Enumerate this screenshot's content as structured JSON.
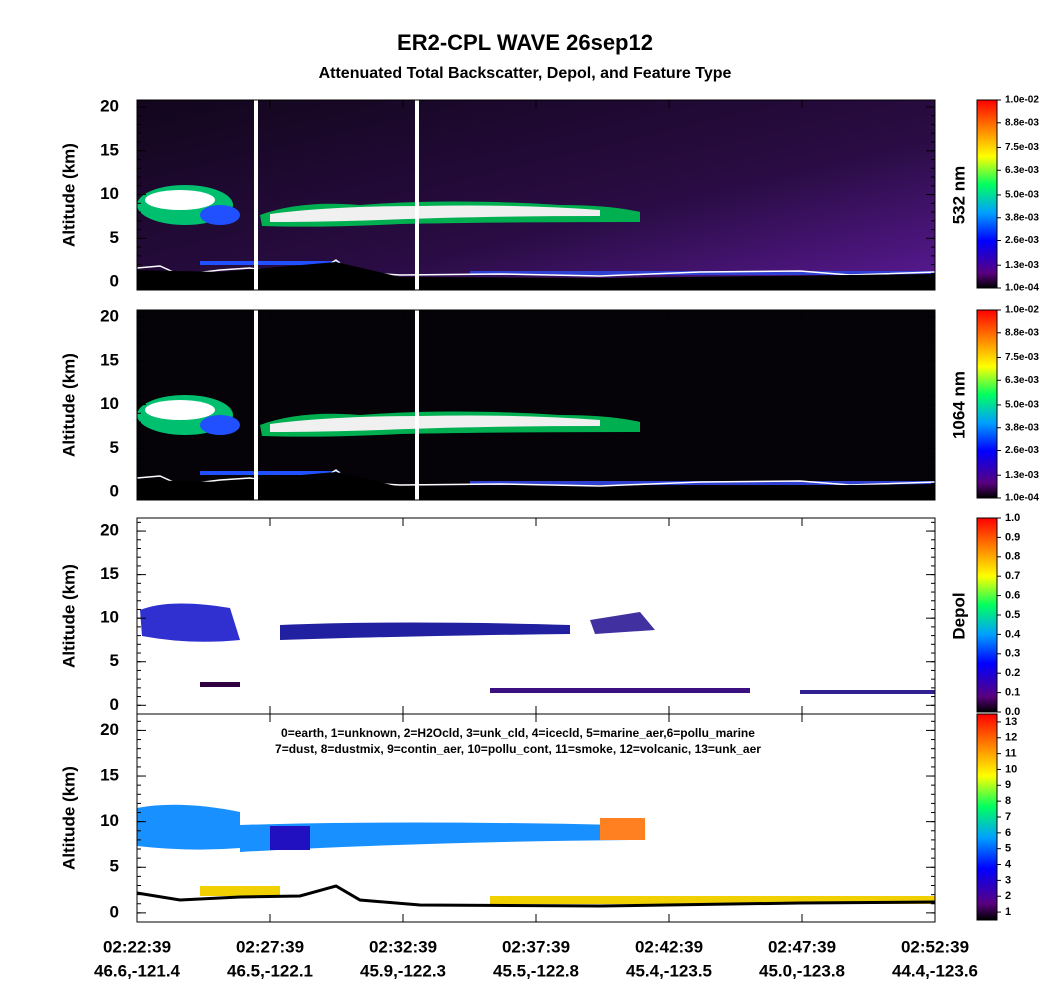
{
  "title": "ER2-CPL WAVE 26sep12",
  "subtitle": "Attenuated Total Backscatter, Depol, and Feature Type",
  "x_axis": {
    "ticks": [
      {
        "time": "02:22:39",
        "location": "46.6,-121.4"
      },
      {
        "time": "02:27:39",
        "location": "46.5,-122.1"
      },
      {
        "time": "02:32:39",
        "location": "45.9,-122.3"
      },
      {
        "time": "02:37:39",
        "location": "45.5,-122.8"
      },
      {
        "time": "02:42:39",
        "location": "45.4,-123.5"
      },
      {
        "time": "02:47:39",
        "location": "45.0,-123.8"
      },
      {
        "time": "02:52:39",
        "location": "44.4,-123.6"
      }
    ]
  },
  "chart_data": [
    {
      "type": "heatmap",
      "y_label": "Altitude (km)",
      "ylim": [
        -0.9,
        20.8
      ],
      "yticks": [
        0,
        5,
        10,
        15,
        20
      ],
      "colorbar": {
        "label": "532 nm",
        "lim": [
          0.0001,
          0.01
        ],
        "scale": "rainbow",
        "ticks": [
          {
            "value": 0.0001,
            "label": "1.0e-04"
          },
          {
            "value": 0.0013,
            "label": "1.3e-03"
          },
          {
            "value": 0.0026,
            "label": "2.6e-03"
          },
          {
            "value": 0.0038,
            "label": "3.8e-03"
          },
          {
            "value": 0.005,
            "label": "5.0e-03"
          },
          {
            "value": 0.0063,
            "label": "6.3e-03"
          },
          {
            "value": 0.0075,
            "label": "7.5e-03"
          },
          {
            "value": 0.0088,
            "label": "8.8e-03"
          },
          {
            "value": 0.01,
            "label": "1.0e-02"
          }
        ]
      }
    },
    {
      "type": "heatmap",
      "y_label": "Altitude (km)",
      "ylim": [
        -0.9,
        20.8
      ],
      "yticks": [
        0,
        5,
        10,
        15,
        20
      ],
      "colorbar": {
        "label": "1064 nm",
        "lim": [
          0.0001,
          0.01
        ],
        "scale": "rainbow",
        "ticks": [
          {
            "value": 0.0001,
            "label": "1.0e-04"
          },
          {
            "value": 0.0013,
            "label": "1.3e-03"
          },
          {
            "value": 0.0026,
            "label": "2.6e-03"
          },
          {
            "value": 0.0038,
            "label": "3.8e-03"
          },
          {
            "value": 0.005,
            "label": "5.0e-03"
          },
          {
            "value": 0.0063,
            "label": "6.3e-03"
          },
          {
            "value": 0.0075,
            "label": "7.5e-03"
          },
          {
            "value": 0.0088,
            "label": "8.8e-03"
          },
          {
            "value": 0.01,
            "label": "1.0e-02"
          }
        ]
      }
    },
    {
      "type": "heatmap",
      "y_label": "Altitude (km)",
      "ylim": [
        -1.0,
        21.5
      ],
      "yticks": [
        0,
        5,
        10,
        15,
        20
      ],
      "colorbar": {
        "label": "Depol",
        "lim": [
          0,
          1
        ],
        "scale": "rainbow",
        "ticks": [
          {
            "value": 0,
            "label": "0.0"
          },
          {
            "value": 0.1,
            "label": "0.1"
          },
          {
            "value": 0.2,
            "label": "0.2"
          },
          {
            "value": 0.3,
            "label": "0.3"
          },
          {
            "value": 0.4,
            "label": "0.4"
          },
          {
            "value": 0.5,
            "label": "0.5"
          },
          {
            "value": 0.6,
            "label": "0.6"
          },
          {
            "value": 0.7,
            "label": "0.7"
          },
          {
            "value": 0.8,
            "label": "0.8"
          },
          {
            "value": 0.9,
            "label": "0.9"
          },
          {
            "value": 1,
            "label": "1.0"
          }
        ]
      }
    },
    {
      "type": "heatmap",
      "y_label": "Altitude (km)",
      "ylim": [
        -1.0,
        21.8
      ],
      "yticks": [
        0,
        5,
        10,
        15,
        20
      ],
      "legend_lines": [
        "0=earth, 1=unknown, 2=H2Ocld, 3=unk_cld, 4=icecld, 5=marine_aer,6=pollu_marine",
        "7=dust, 8=dustmix, 9=contin_aer, 10=pollu_cont, 11=smoke, 12=volcanic, 13=unk_aer"
      ],
      "colorbar": {
        "lim": [
          0.5,
          13.5
        ],
        "scale": "rainbow",
        "ticks": [
          1,
          2,
          3,
          4,
          5,
          6,
          7,
          8,
          9,
          10,
          11,
          12,
          13
        ]
      }
    }
  ]
}
